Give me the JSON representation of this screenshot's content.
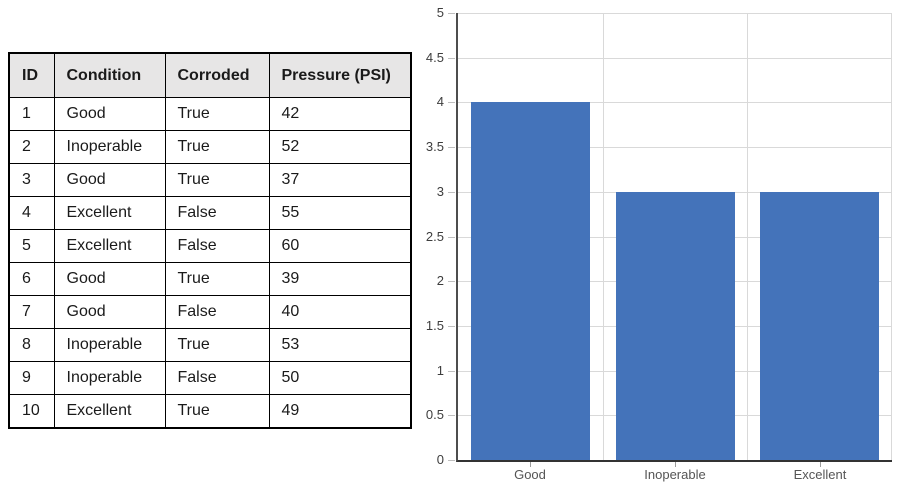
{
  "table": {
    "columns": [
      {
        "key": "id",
        "label": "ID"
      },
      {
        "key": "condition",
        "label": "Condition"
      },
      {
        "key": "corroded",
        "label": "Corroded"
      },
      {
        "key": "pressure",
        "label": "Pressure (PSI)"
      }
    ],
    "rows": [
      [
        "1",
        "Good",
        "True",
        "42"
      ],
      [
        "2",
        "Inoperable",
        "True",
        "52"
      ],
      [
        "3",
        "Good",
        "True",
        "37"
      ],
      [
        "4",
        "Excellent",
        "False",
        "55"
      ],
      [
        "5",
        "Excellent",
        "False",
        "60"
      ],
      [
        "6",
        "Good",
        "True",
        "39"
      ],
      [
        "7",
        "Good",
        "False",
        "40"
      ],
      [
        "8",
        "Inoperable",
        "True",
        "53"
      ],
      [
        "9",
        "Inoperable",
        "False",
        "50"
      ],
      [
        "10",
        "Excellent",
        "True",
        "49"
      ]
    ],
    "header_bg": "#e7e6e6",
    "border_color": "#000000"
  },
  "chart_data": {
    "type": "bar",
    "categories": [
      "Good",
      "Inoperable",
      "Excellent"
    ],
    "values": [
      4,
      3,
      3
    ],
    "title": "",
    "xlabel": "",
    "ylabel": "",
    "ylim": [
      0,
      5
    ],
    "ytick_labels": [
      "0",
      "0.5",
      "1",
      "1.5",
      "2",
      "2.5",
      "3",
      "3.5",
      "4",
      "4.5",
      "5"
    ],
    "grid": true,
    "legend_position": "none",
    "bar_color": "#4473ba",
    "gridline_color": "#d9d9d9",
    "axis_color": "#333333"
  }
}
